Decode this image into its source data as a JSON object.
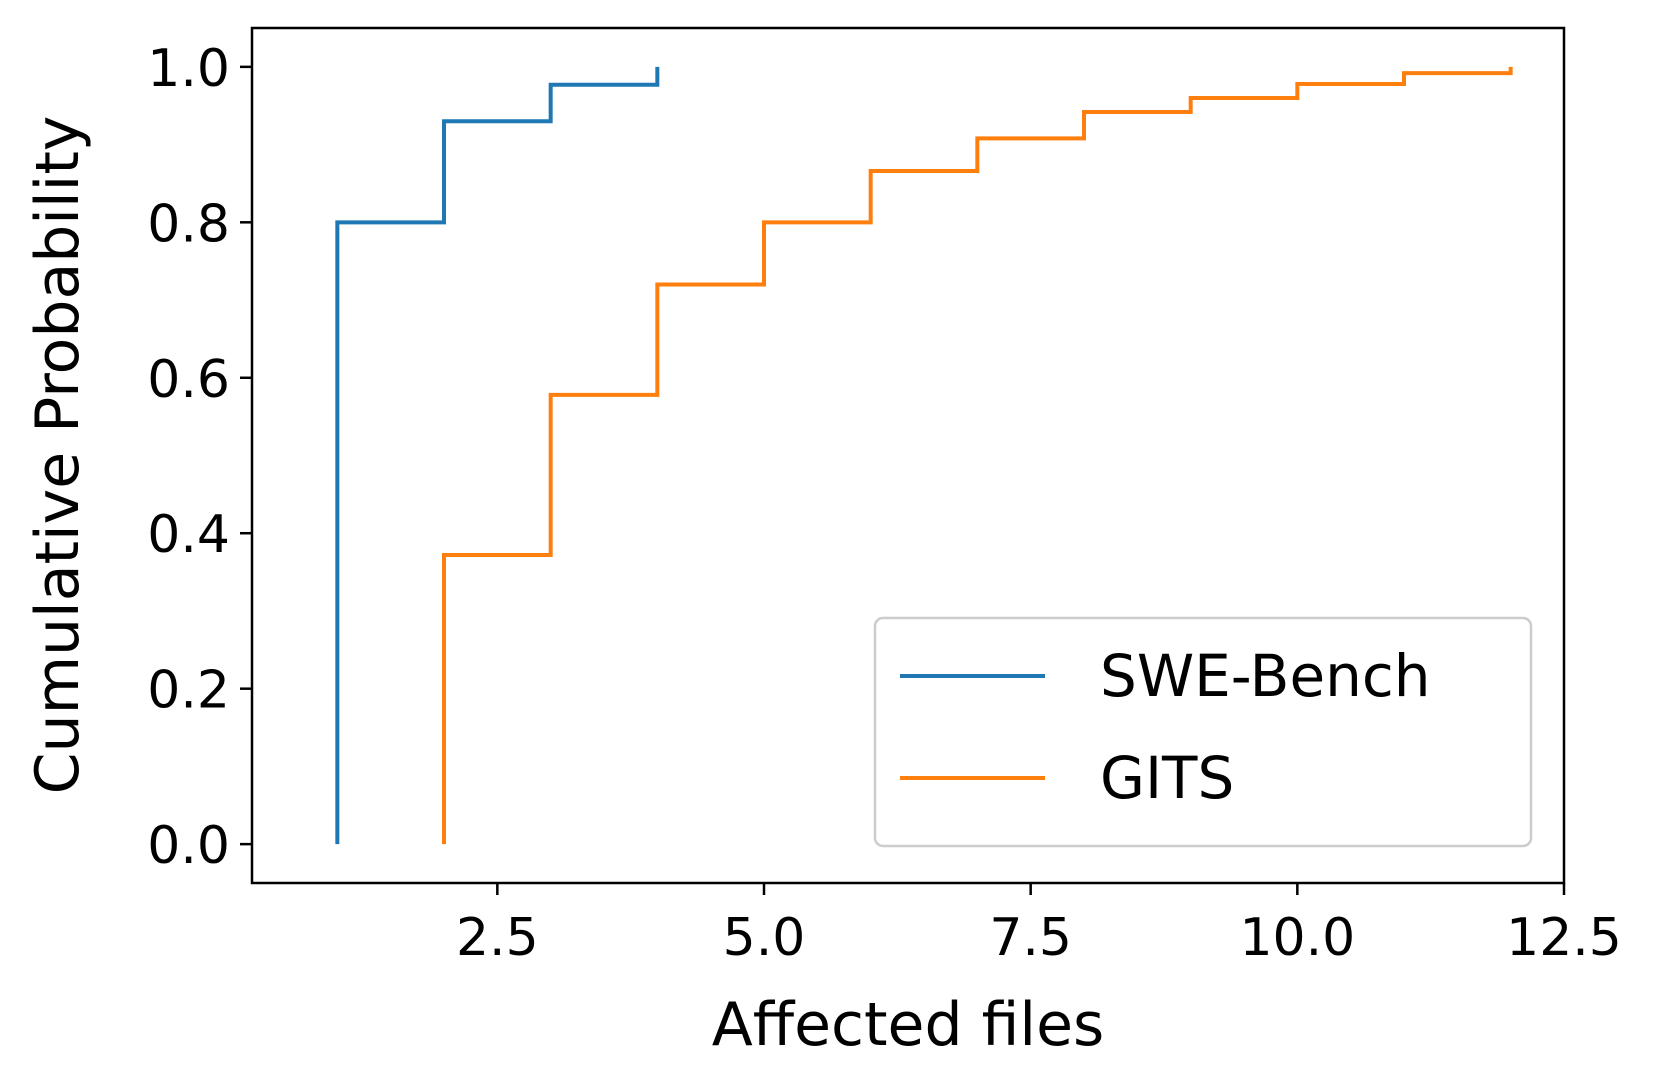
{
  "chart_data": {
    "type": "line",
    "step": true,
    "xlabel": "Affected files",
    "ylabel": "Cumulative Probability",
    "xlim": [
      0.2,
      12.5
    ],
    "ylim": [
      -0.05,
      1.05
    ],
    "xticks": [
      2.5,
      5.0,
      7.5,
      10.0,
      12.5
    ],
    "xtick_labels": [
      "2.5",
      "5.0",
      "7.5",
      "10.0",
      "12.5"
    ],
    "yticks": [
      0.0,
      0.2,
      0.4,
      0.6,
      0.8,
      1.0
    ],
    "ytick_labels": [
      "0.0",
      "0.2",
      "0.4",
      "0.6",
      "0.8",
      "1.0"
    ],
    "grid": false,
    "legend_position": "bottom-right",
    "series": [
      {
        "name": "SWE-Bench",
        "color": "#1f77b4",
        "x": [
          1,
          1,
          2,
          3,
          4,
          4
        ],
        "y": [
          0.0,
          0.8,
          0.93,
          0.977,
          0.978,
          1.0
        ]
      },
      {
        "name": "GITS",
        "color": "#ff7f0e",
        "x": [
          2,
          2,
          3,
          4,
          5,
          6,
          7,
          8,
          9,
          10,
          11,
          12,
          12
        ],
        "y": [
          0.0,
          0.372,
          0.578,
          0.72,
          0.8,
          0.866,
          0.908,
          0.942,
          0.96,
          0.978,
          0.992,
          0.994,
          1.0
        ]
      }
    ]
  }
}
